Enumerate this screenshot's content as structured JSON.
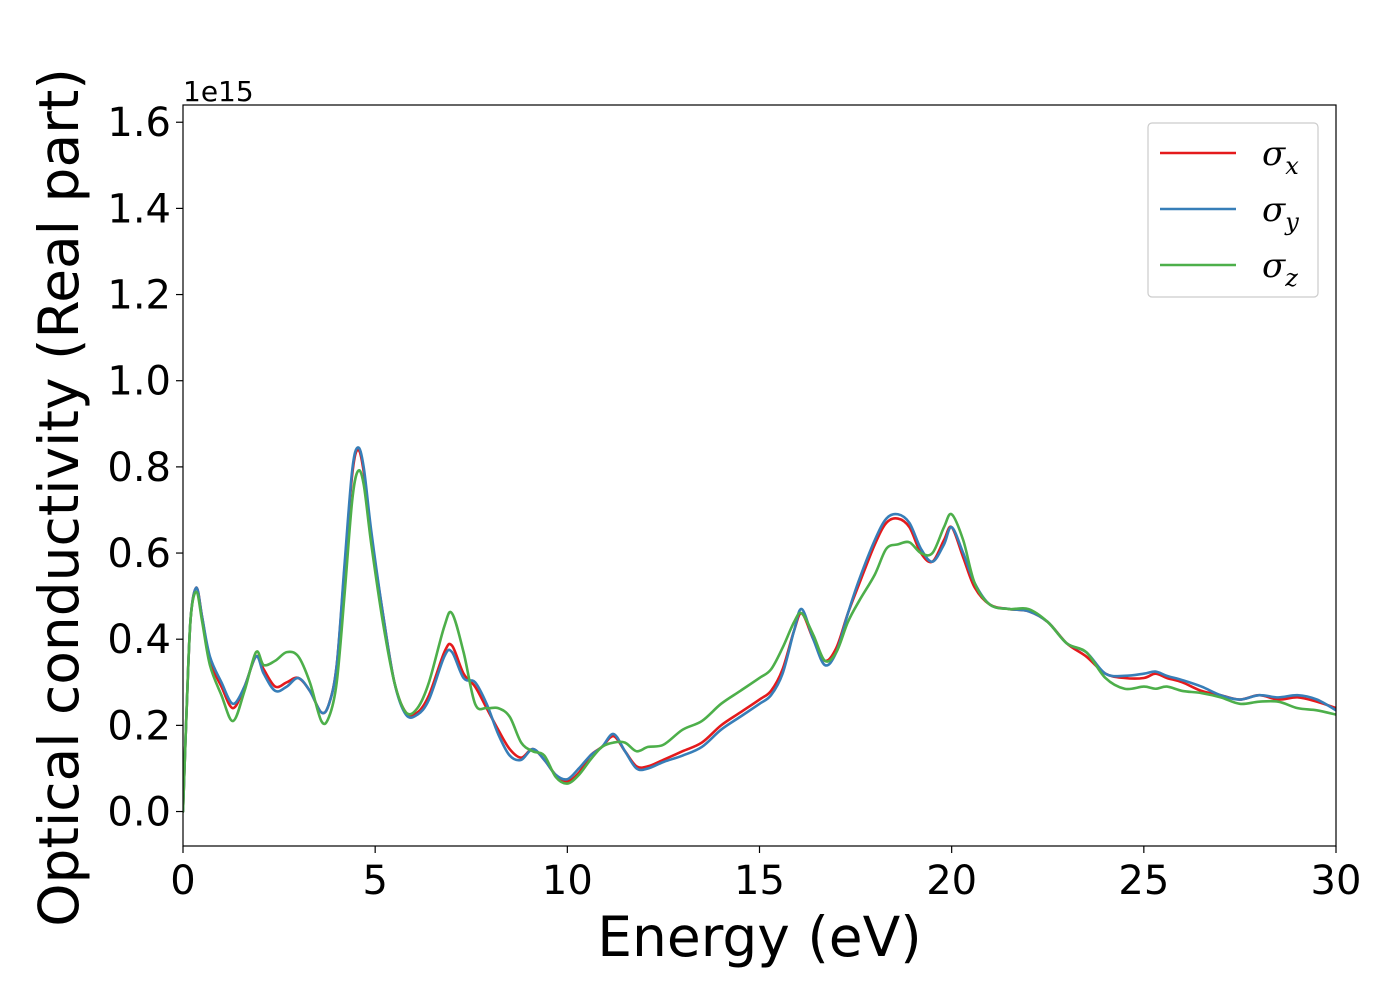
{
  "chart_data": {
    "type": "line",
    "xlabel": "Energy (eV)",
    "ylabel": "Optical conductivity (Real part)",
    "y_offset_label": "1e15",
    "xlim": [
      0,
      30
    ],
    "ylim": [
      -0.08,
      1.64
    ],
    "x_ticks": [
      0,
      5,
      10,
      15,
      20,
      25,
      30
    ],
    "x_tick_labels": [
      "0",
      "5",
      "10",
      "15",
      "20",
      "25",
      "30"
    ],
    "y_ticks": [
      0.0,
      0.2,
      0.4,
      0.6,
      0.8,
      1.0,
      1.2,
      1.4,
      1.6
    ],
    "y_tick_labels": [
      "0.0",
      "0.2",
      "0.4",
      "0.6",
      "0.8",
      "1.0",
      "1.2",
      "1.4",
      "1.6"
    ],
    "grid": false,
    "legend_position": "top-right",
    "x": [
      0,
      0.1,
      0.2,
      0.35,
      0.5,
      0.7,
      1.0,
      1.3,
      1.6,
      1.9,
      2.1,
      2.4,
      2.7,
      3.0,
      3.3,
      3.6,
      3.8,
      4.0,
      4.2,
      4.4,
      4.55,
      4.7,
      4.9,
      5.2,
      5.5,
      5.8,
      6.1,
      6.4,
      6.8,
      7.0,
      7.3,
      7.6,
      7.9,
      8.2,
      8.5,
      8.8,
      9.1,
      9.4,
      9.7,
      10.0,
      10.3,
      10.6,
      10.9,
      11.2,
      11.5,
      11.8,
      12.1,
      12.5,
      13.0,
      13.5,
      14.0,
      14.5,
      15.0,
      15.3,
      15.6,
      15.9,
      16.1,
      16.4,
      16.7,
      17.0,
      17.3,
      17.6,
      18.0,
      18.3,
      18.6,
      18.9,
      19.2,
      19.5,
      19.8,
      20.0,
      20.3,
      20.6,
      21.0,
      21.5,
      22.0,
      22.5,
      23.0,
      23.5,
      24.0,
      24.5,
      25.0,
      25.3,
      25.6,
      26.0,
      26.5,
      27.0,
      27.5,
      28.0,
      28.5,
      29.0,
      29.5,
      30.0
    ],
    "series": [
      {
        "name": "σx",
        "label_base": "σ",
        "label_sub": "x",
        "color": "#e41a1c",
        "values": [
          0.0,
          0.25,
          0.45,
          0.52,
          0.45,
          0.35,
          0.29,
          0.24,
          0.29,
          0.36,
          0.33,
          0.29,
          0.3,
          0.31,
          0.28,
          0.23,
          0.25,
          0.34,
          0.56,
          0.78,
          0.84,
          0.79,
          0.64,
          0.46,
          0.3,
          0.23,
          0.23,
          0.27,
          0.37,
          0.385,
          0.32,
          0.29,
          0.24,
          0.19,
          0.145,
          0.125,
          0.145,
          0.12,
          0.085,
          0.07,
          0.09,
          0.13,
          0.15,
          0.175,
          0.14,
          0.105,
          0.105,
          0.12,
          0.14,
          0.16,
          0.2,
          0.23,
          0.26,
          0.28,
          0.33,
          0.42,
          0.46,
          0.4,
          0.35,
          0.38,
          0.46,
          0.53,
          0.62,
          0.67,
          0.68,
          0.66,
          0.6,
          0.58,
          0.63,
          0.66,
          0.59,
          0.52,
          0.48,
          0.47,
          0.465,
          0.44,
          0.39,
          0.36,
          0.32,
          0.31,
          0.31,
          0.32,
          0.31,
          0.3,
          0.28,
          0.27,
          0.26,
          0.27,
          0.26,
          0.265,
          0.255,
          0.24
        ]
      },
      {
        "name": "σy",
        "label_base": "σ",
        "label_sub": "y",
        "color": "#377eb8",
        "values": [
          0.0,
          0.25,
          0.45,
          0.52,
          0.45,
          0.36,
          0.3,
          0.25,
          0.29,
          0.36,
          0.32,
          0.28,
          0.29,
          0.31,
          0.28,
          0.23,
          0.25,
          0.34,
          0.57,
          0.79,
          0.845,
          0.8,
          0.65,
          0.46,
          0.3,
          0.225,
          0.225,
          0.26,
          0.36,
          0.37,
          0.31,
          0.3,
          0.25,
          0.18,
          0.13,
          0.12,
          0.145,
          0.12,
          0.085,
          0.075,
          0.1,
          0.13,
          0.15,
          0.18,
          0.14,
          0.1,
          0.1,
          0.115,
          0.13,
          0.15,
          0.19,
          0.22,
          0.25,
          0.27,
          0.32,
          0.42,
          0.47,
          0.4,
          0.34,
          0.37,
          0.46,
          0.54,
          0.63,
          0.68,
          0.69,
          0.67,
          0.61,
          0.58,
          0.62,
          0.66,
          0.6,
          0.53,
          0.48,
          0.47,
          0.465,
          0.44,
          0.39,
          0.37,
          0.32,
          0.315,
          0.32,
          0.325,
          0.315,
          0.305,
          0.29,
          0.27,
          0.26,
          0.27,
          0.265,
          0.27,
          0.26,
          0.235
        ]
      },
      {
        "name": "σz",
        "label_base": "σ",
        "label_sub": "z",
        "color": "#4daf4a",
        "values": [
          0.0,
          0.25,
          0.45,
          0.51,
          0.44,
          0.34,
          0.27,
          0.21,
          0.28,
          0.37,
          0.34,
          0.35,
          0.37,
          0.36,
          0.3,
          0.21,
          0.22,
          0.3,
          0.5,
          0.72,
          0.79,
          0.76,
          0.62,
          0.44,
          0.3,
          0.23,
          0.24,
          0.3,
          0.43,
          0.46,
          0.37,
          0.25,
          0.24,
          0.24,
          0.22,
          0.16,
          0.14,
          0.13,
          0.08,
          0.065,
          0.085,
          0.12,
          0.15,
          0.16,
          0.16,
          0.14,
          0.15,
          0.155,
          0.19,
          0.21,
          0.25,
          0.28,
          0.31,
          0.33,
          0.38,
          0.44,
          0.46,
          0.41,
          0.35,
          0.37,
          0.44,
          0.49,
          0.55,
          0.61,
          0.62,
          0.625,
          0.6,
          0.6,
          0.66,
          0.69,
          0.63,
          0.53,
          0.48,
          0.47,
          0.47,
          0.44,
          0.39,
          0.37,
          0.31,
          0.285,
          0.29,
          0.285,
          0.29,
          0.28,
          0.275,
          0.265,
          0.25,
          0.255,
          0.255,
          0.24,
          0.235,
          0.225
        ]
      }
    ]
  }
}
